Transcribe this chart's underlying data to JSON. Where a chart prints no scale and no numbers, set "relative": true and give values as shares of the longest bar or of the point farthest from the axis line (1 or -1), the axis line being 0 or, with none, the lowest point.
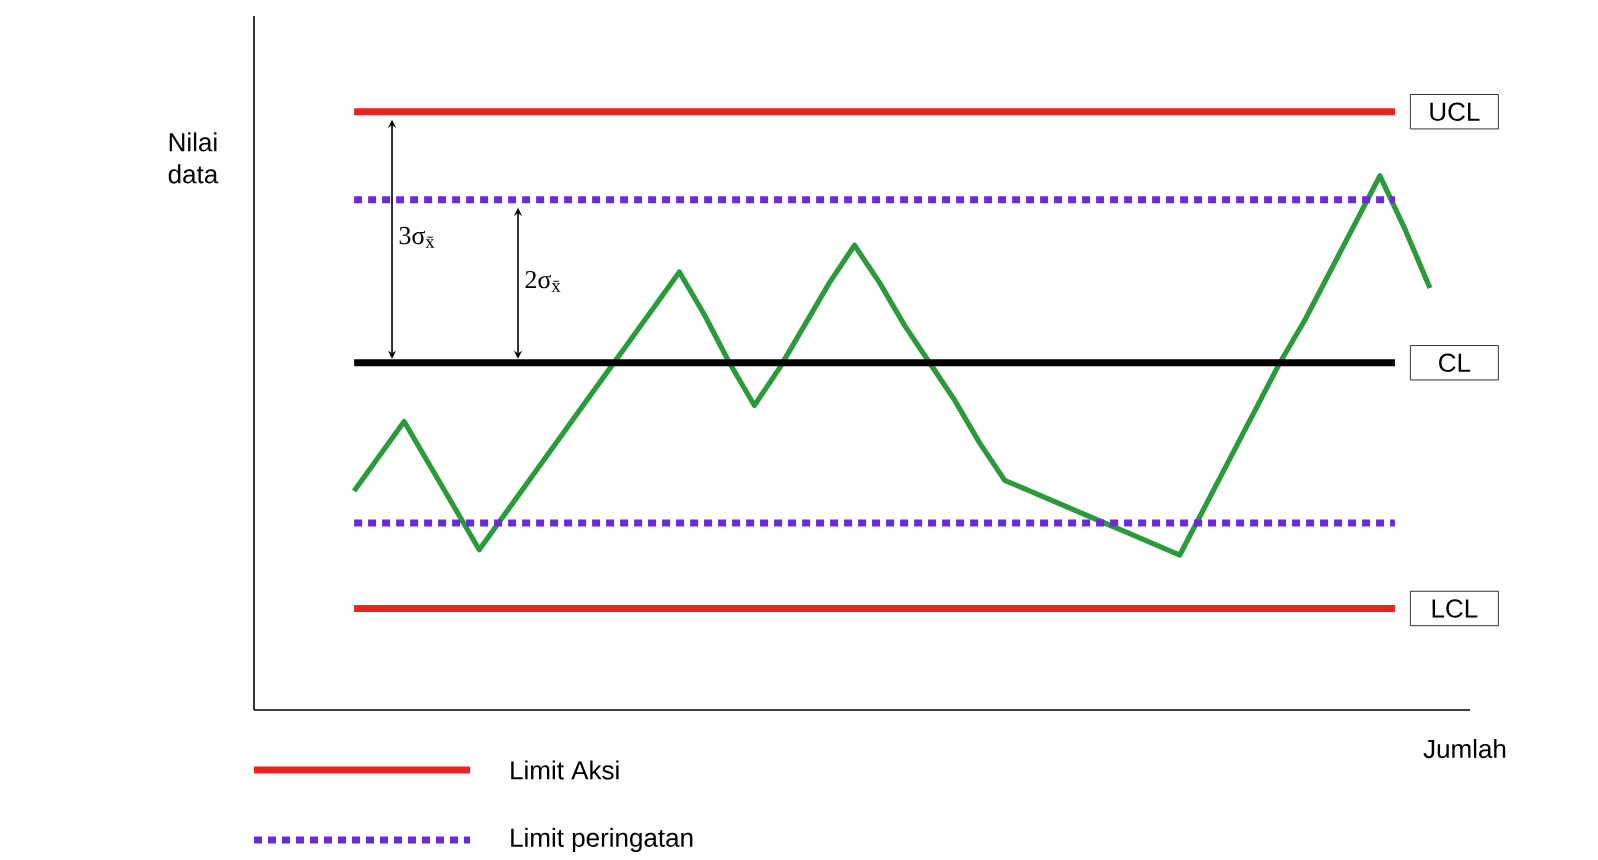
{
  "chart_data": {
    "type": "line",
    "relative": true,
    "xlabel": "Jumlah",
    "ylabel": "Nilai data",
    "categories": [
      null,
      null,
      null,
      null,
      null,
      null,
      null,
      null,
      null,
      null,
      null,
      null,
      null,
      null,
      null,
      null,
      null,
      null,
      null,
      null,
      null,
      null,
      null,
      null,
      null,
      null,
      null,
      null,
      null,
      null,
      null,
      null,
      null,
      null,
      null,
      null,
      null,
      null,
      null,
      null,
      null,
      null,
      null,
      null
    ],
    "series": [
      {
        "color": "#2a9a3a",
        "values": [
          0.41,
          0.475,
          0.54,
          0.46,
          0.38,
          0.3,
          0.365,
          0.43,
          0.495,
          0.56,
          0.625,
          0.69,
          0.755,
          0.82,
          0.74,
          0.65,
          0.57,
          0.64,
          0.72,
          0.8,
          0.87,
          0.8,
          0.72,
          0.65,
          0.58,
          0.5,
          0.43,
          0.41,
          0.39,
          0.37,
          0.35,
          0.33,
          0.31,
          0.29,
          0.38,
          0.47,
          0.56,
          0.65,
          0.73,
          0.82,
          0.91,
          1.0,
          0.9,
          0.79
        ]
      }
    ],
    "ref_lines": [
      {
        "axis": "y",
        "value": 1.12,
        "label": "UCL",
        "color": "#f02020",
        "line_style": "solid"
      },
      {
        "axis": "y",
        "value": 0.955,
        "label": null,
        "color": "#6a2bd9",
        "line_style": "dotted"
      },
      {
        "axis": "y",
        "value": 0.65,
        "label": "CL",
        "color": "#000000",
        "line_style": "solid"
      },
      {
        "axis": "y",
        "value": 0.35,
        "label": null,
        "color": "#6a2bd9",
        "line_style": "dotted"
      },
      {
        "axis": "y",
        "value": 0.19,
        "label": "LCL",
        "color": "#f02020",
        "line_style": "solid"
      }
    ],
    "annotations": [
      "3σ$_{x̄}$",
      "2σ$_{x̄}$",
      "Limit Aksi",
      "Limit peringatan"
    ]
  }
}
